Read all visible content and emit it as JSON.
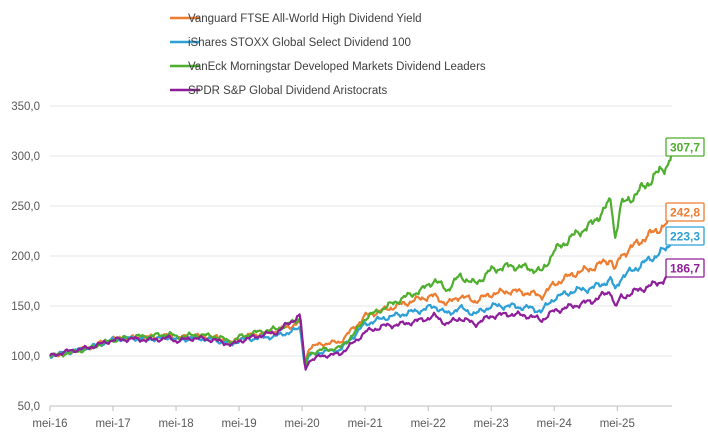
{
  "chart_data": {
    "type": "line",
    "title": "",
    "xlabel": "",
    "ylabel": "",
    "ylim": [
      50,
      350
    ],
    "yticks": [
      50,
      100,
      150,
      200,
      250,
      300,
      350
    ],
    "ytick_labels": [
      "50,0",
      "100,0",
      "150,0",
      "200,0",
      "250,0",
      "300,0",
      "350,0"
    ],
    "x_range": [
      2016.0,
      2025.9
    ],
    "xticks": [
      2016.0,
      2017.0,
      2018.0,
      2019.0,
      2020.0,
      2021.0,
      2022.0,
      2023.0,
      2024.0,
      2025.0
    ],
    "xtick_labels": [
      "mei-16",
      "mei-17",
      "mei-18",
      "mei-19",
      "mei-20",
      "mei-21",
      "mei-22",
      "mei-23",
      "mei-24",
      "mei-25"
    ],
    "grid": true,
    "legend_position": "top",
    "series": [
      {
        "name": "Vanguard FTSE All-World High Dividend Yield",
        "color": "#ED7D31",
        "end_label": "242,8",
        "points": [
          [
            2016.0,
            100
          ],
          [
            2016.3,
            104
          ],
          [
            2016.6,
            108
          ],
          [
            2016.8,
            113
          ],
          [
            2017.0,
            117
          ],
          [
            2017.3,
            118
          ],
          [
            2017.6,
            119
          ],
          [
            2017.9,
            120
          ],
          [
            2018.0,
            118
          ],
          [
            2018.3,
            120
          ],
          [
            2018.6,
            119
          ],
          [
            2018.9,
            113
          ],
          [
            2019.0,
            118
          ],
          [
            2019.3,
            122
          ],
          [
            2019.6,
            125
          ],
          [
            2019.9,
            132
          ],
          [
            2019.97,
            134
          ],
          [
            2020.05,
            90
          ],
          [
            2020.1,
            108
          ],
          [
            2020.3,
            112
          ],
          [
            2020.6,
            114
          ],
          [
            2020.85,
            130
          ],
          [
            2021.0,
            140
          ],
          [
            2021.3,
            146
          ],
          [
            2021.6,
            152
          ],
          [
            2021.9,
            158
          ],
          [
            2022.1,
            160
          ],
          [
            2022.3,
            152
          ],
          [
            2022.5,
            160
          ],
          [
            2022.75,
            155
          ],
          [
            2023.0,
            162
          ],
          [
            2023.3,
            165
          ],
          [
            2023.6,
            163
          ],
          [
            2023.8,
            160
          ],
          [
            2024.0,
            172
          ],
          [
            2024.3,
            182
          ],
          [
            2024.6,
            188
          ],
          [
            2024.9,
            197
          ],
          [
            2024.97,
            185
          ],
          [
            2025.05,
            200
          ],
          [
            2025.3,
            212
          ],
          [
            2025.6,
            225
          ],
          [
            2025.8,
            232
          ],
          [
            2025.9,
            243
          ]
        ]
      },
      {
        "name": "iShares STOXX Global Select Dividend 100",
        "color": "#2EA0D5",
        "end_label": "223,3",
        "points": [
          [
            2016.0,
            100
          ],
          [
            2016.3,
            104
          ],
          [
            2016.6,
            108
          ],
          [
            2016.8,
            112
          ],
          [
            2017.0,
            116
          ],
          [
            2017.3,
            118
          ],
          [
            2017.6,
            117
          ],
          [
            2017.9,
            119
          ],
          [
            2018.0,
            116
          ],
          [
            2018.3,
            118
          ],
          [
            2018.6,
            116
          ],
          [
            2018.9,
            112
          ],
          [
            2019.0,
            116
          ],
          [
            2019.3,
            118
          ],
          [
            2019.6,
            120
          ],
          [
            2019.9,
            126
          ],
          [
            2019.97,
            128
          ],
          [
            2020.05,
            87
          ],
          [
            2020.1,
            100
          ],
          [
            2020.3,
            104
          ],
          [
            2020.6,
            106
          ],
          [
            2020.85,
            122
          ],
          [
            2021.0,
            132
          ],
          [
            2021.3,
            138
          ],
          [
            2021.6,
            142
          ],
          [
            2021.9,
            146
          ],
          [
            2022.1,
            150
          ],
          [
            2022.3,
            142
          ],
          [
            2022.5,
            148
          ],
          [
            2022.75,
            142
          ],
          [
            2023.0,
            150
          ],
          [
            2023.3,
            150
          ],
          [
            2023.6,
            148
          ],
          [
            2023.8,
            145
          ],
          [
            2024.0,
            158
          ],
          [
            2024.3,
            165
          ],
          [
            2024.6,
            168
          ],
          [
            2024.9,
            176
          ],
          [
            2024.97,
            166
          ],
          [
            2025.05,
            178
          ],
          [
            2025.3,
            188
          ],
          [
            2025.6,
            200
          ],
          [
            2025.8,
            208
          ],
          [
            2025.9,
            223
          ]
        ]
      },
      {
        "name": "VanEck Morningstar Developed Markets Dividend Leaders",
        "color": "#4EAE2E",
        "end_label": "307,7",
        "points": [
          [
            2016.0,
            100
          ],
          [
            2016.3,
            103
          ],
          [
            2016.6,
            107
          ],
          [
            2016.8,
            112
          ],
          [
            2017.0,
            116
          ],
          [
            2017.3,
            119
          ],
          [
            2017.6,
            120
          ],
          [
            2017.9,
            122
          ],
          [
            2018.0,
            119
          ],
          [
            2018.3,
            121
          ],
          [
            2018.6,
            120
          ],
          [
            2018.9,
            114
          ],
          [
            2019.0,
            119
          ],
          [
            2019.3,
            124
          ],
          [
            2019.6,
            127
          ],
          [
            2019.9,
            135
          ],
          [
            2019.97,
            138
          ],
          [
            2020.05,
            88
          ],
          [
            2020.1,
            102
          ],
          [
            2020.3,
            106
          ],
          [
            2020.6,
            108
          ],
          [
            2020.85,
            124
          ],
          [
            2021.0,
            138
          ],
          [
            2021.3,
            148
          ],
          [
            2021.6,
            158
          ],
          [
            2021.9,
            166
          ],
          [
            2022.1,
            176
          ],
          [
            2022.3,
            166
          ],
          [
            2022.5,
            180
          ],
          [
            2022.75,
            172
          ],
          [
            2023.0,
            186
          ],
          [
            2023.3,
            190
          ],
          [
            2023.6,
            188
          ],
          [
            2023.8,
            184
          ],
          [
            2024.0,
            205
          ],
          [
            2024.3,
            220
          ],
          [
            2024.6,
            232
          ],
          [
            2024.9,
            255
          ],
          [
            2024.97,
            218
          ],
          [
            2025.05,
            250
          ],
          [
            2025.3,
            262
          ],
          [
            2025.6,
            280
          ],
          [
            2025.8,
            292
          ],
          [
            2025.9,
            308
          ]
        ]
      },
      {
        "name": "SPDR S&P Global Dividend Aristocrats",
        "color": "#8E1E9A",
        "end_label": "186,7",
        "points": [
          [
            2016.0,
            100
          ],
          [
            2016.3,
            105
          ],
          [
            2016.6,
            108
          ],
          [
            2016.8,
            112
          ],
          [
            2017.0,
            116
          ],
          [
            2017.3,
            117
          ],
          [
            2017.6,
            116
          ],
          [
            2017.9,
            118
          ],
          [
            2018.0,
            115
          ],
          [
            2018.3,
            118
          ],
          [
            2018.6,
            116
          ],
          [
            2018.9,
            111
          ],
          [
            2019.0,
            115
          ],
          [
            2019.3,
            120
          ],
          [
            2019.6,
            124
          ],
          [
            2019.9,
            138
          ],
          [
            2019.97,
            140
          ],
          [
            2020.05,
            85
          ],
          [
            2020.1,
            95
          ],
          [
            2020.3,
            100
          ],
          [
            2020.6,
            102
          ],
          [
            2020.85,
            115
          ],
          [
            2021.0,
            124
          ],
          [
            2021.3,
            130
          ],
          [
            2021.6,
            132
          ],
          [
            2021.9,
            136
          ],
          [
            2022.1,
            140
          ],
          [
            2022.3,
            132
          ],
          [
            2022.5,
            138
          ],
          [
            2022.75,
            132
          ],
          [
            2023.0,
            140
          ],
          [
            2023.3,
            142
          ],
          [
            2023.6,
            140
          ],
          [
            2023.8,
            136
          ],
          [
            2024.0,
            145
          ],
          [
            2024.3,
            150
          ],
          [
            2024.6,
            155
          ],
          [
            2024.9,
            165
          ],
          [
            2024.97,
            148
          ],
          [
            2025.05,
            158
          ],
          [
            2025.3,
            165
          ],
          [
            2025.6,
            172
          ],
          [
            2025.8,
            178
          ],
          [
            2025.9,
            187
          ]
        ]
      }
    ]
  }
}
